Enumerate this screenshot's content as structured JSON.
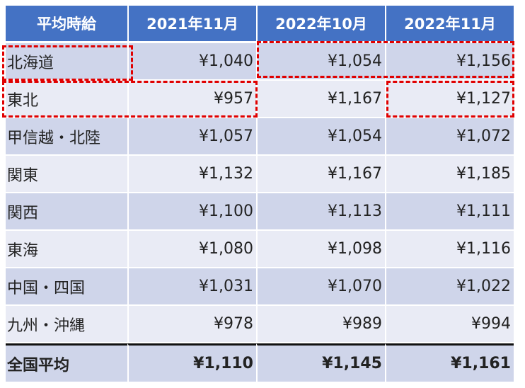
{
  "chart_data": {
    "type": "table",
    "columns": [
      "平均時給",
      "2021年11月",
      "2022年10月",
      "2022年11月"
    ],
    "rows": [
      {
        "region": "北海道",
        "values": [
          "¥1,040",
          "¥1,054",
          "¥1,156"
        ]
      },
      {
        "region": "東北",
        "values": [
          "¥957",
          "¥1,167",
          "¥1,127"
        ]
      },
      {
        "region": "甲信越・北陸",
        "values": [
          "¥1,057",
          "¥1,054",
          "¥1,072"
        ]
      },
      {
        "region": "関東",
        "values": [
          "¥1,132",
          "¥1,167",
          "¥1,185"
        ]
      },
      {
        "region": "関西",
        "values": [
          "¥1,100",
          "¥1,113",
          "¥1,111"
        ]
      },
      {
        "region": "東海",
        "values": [
          "¥1,080",
          "¥1,098",
          "¥1,116"
        ]
      },
      {
        "region": "中国・四国",
        "values": [
          "¥1,031",
          "¥1,070",
          "¥1,022"
        ]
      },
      {
        "region": "九州・沖縄",
        "values": [
          "¥978",
          "¥989",
          "¥994"
        ]
      }
    ],
    "total": {
      "region": "全国平均",
      "values": [
        "¥1,110",
        "¥1,145",
        "¥1,161"
      ]
    },
    "highlights": [
      {
        "row": "北海道",
        "column": "平均時給"
      },
      {
        "row": "北海道",
        "column": "2022年10月"
      },
      {
        "row": "北海道",
        "column": "2022年11月"
      },
      {
        "row": "東北",
        "column": "平均時給"
      },
      {
        "row": "東北",
        "column": "2021年11月"
      },
      {
        "row": "東北",
        "column": "2022年11月"
      }
    ]
  },
  "colors": {
    "header_bg": "#4472c4",
    "header_text": "#ffffff",
    "row_band_dark": "#cfd5ea",
    "row_band_light": "#e9ebf5",
    "highlight_dash": "#e00000",
    "total_rule": "#111111"
  }
}
